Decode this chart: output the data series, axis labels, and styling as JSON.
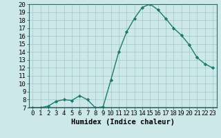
{
  "x": [
    0,
    1,
    2,
    3,
    4,
    5,
    6,
    7,
    8,
    9,
    10,
    11,
    12,
    13,
    14,
    15,
    16,
    17,
    18,
    19,
    20,
    21,
    22,
    23
  ],
  "y": [
    7.0,
    7.0,
    7.2,
    7.8,
    8.0,
    7.9,
    8.5,
    8.0,
    7.0,
    7.1,
    10.5,
    14.0,
    16.5,
    18.2,
    19.6,
    20.0,
    19.3,
    18.2,
    17.0,
    16.1,
    14.9,
    13.3,
    12.5,
    12.0
  ],
  "line_color": "#1a7a6e",
  "marker": "D",
  "marker_size": 2.2,
  "bg_color": "#cce8e8",
  "grid_color": "#aacccc",
  "xlabel": "Humidex (Indice chaleur)",
  "ylim": [
    7,
    20
  ],
  "xlim": [
    -0.5,
    23.5
  ],
  "yticks": [
    7,
    8,
    9,
    10,
    11,
    12,
    13,
    14,
    15,
    16,
    17,
    18,
    19,
    20
  ],
  "xticks": [
    0,
    1,
    2,
    3,
    4,
    5,
    6,
    7,
    8,
    9,
    10,
    11,
    12,
    13,
    14,
    15,
    16,
    17,
    18,
    19,
    20,
    21,
    22,
    23
  ],
  "xlabel_fontsize": 7.5,
  "tick_fontsize": 6.5,
  "spine_color": "#336666",
  "line_width": 1.0,
  "bottom_color": "#336666"
}
